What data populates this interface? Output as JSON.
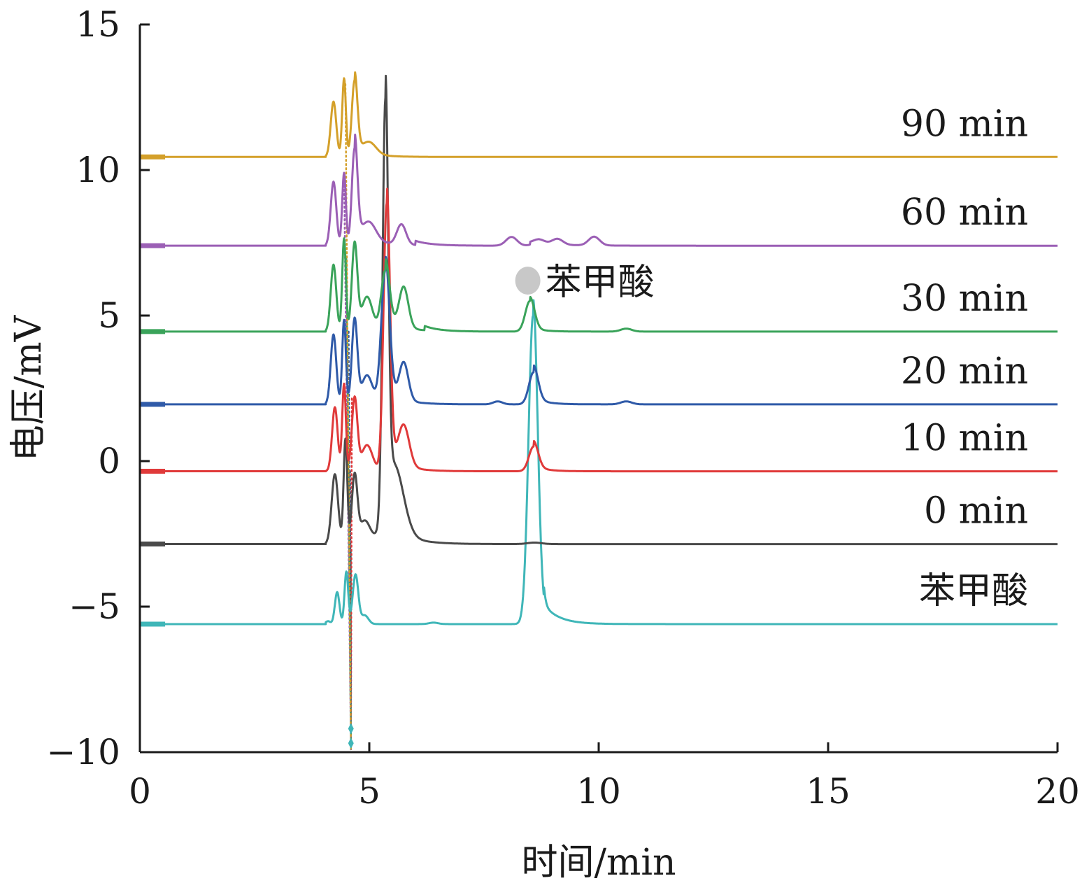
{
  "chart_data": {
    "type": "line",
    "xlabel": "时间/min",
    "ylabel": "电压/mV",
    "xlim": [
      0,
      20
    ],
    "ylim": [
      -10,
      15
    ],
    "xticks": [
      0,
      5,
      10,
      15,
      20
    ],
    "yticks": [
      -10,
      -5,
      0,
      5,
      10,
      15
    ],
    "ytick_labels": [
      "−10",
      "−5",
      "0",
      "5",
      "10",
      "15"
    ],
    "grid": false,
    "legend": "inline labels at right end of each trace",
    "series": [
      {
        "name": "苯甲酸",
        "color": "#3fb6b8",
        "baseline": -5.6,
        "peaks": [
          [
            4.1,
            0.1,
            0.05
          ],
          [
            4.3,
            1.1,
            0.05
          ],
          [
            4.5,
            1.8,
            0.04
          ],
          [
            4.7,
            1.7,
            0.06
          ],
          [
            4.9,
            0.3,
            0.08
          ],
          [
            6.4,
            0.05,
            0.1
          ],
          [
            8.57,
            10.6,
            0.1
          ]
        ],
        "tail": [
          [
            8.57,
            0.6,
            0.3
          ],
          [
            8.8,
            0.4,
            0.35
          ]
        ],
        "marker": 4.6
      },
      {
        "name": "0 min",
        "color": "#4a4a4a",
        "baseline": -2.85,
        "peaks": [
          [
            4.25,
            2.4,
            0.07
          ],
          [
            4.48,
            3.6,
            0.04
          ],
          [
            4.68,
            2.3,
            0.06
          ],
          [
            4.9,
            0.8,
            0.12
          ],
          [
            5.35,
            14.0,
            0.06
          ],
          [
            5.55,
            2.2,
            0.2
          ],
          [
            8.6,
            0.05,
            0.15
          ]
        ],
        "tail": [
          [
            5.35,
            0.9,
            0.4
          ]
        ],
        "marker": 4.58
      },
      {
        "name": "10 min",
        "color": "#e03a3a",
        "baseline": -0.35,
        "peaks": [
          [
            4.25,
            2.2,
            0.06
          ],
          [
            4.45,
            3.0,
            0.04
          ],
          [
            4.68,
            2.5,
            0.06
          ],
          [
            4.95,
            0.9,
            0.12
          ],
          [
            5.38,
            9.2,
            0.07
          ],
          [
            5.75,
            1.4,
            0.12
          ],
          [
            8.58,
            0.85,
            0.1
          ]
        ],
        "tail": [
          [
            5.38,
            0.6,
            0.35
          ],
          [
            8.58,
            0.2,
            0.25
          ]
        ],
        "marker": 4.62
      },
      {
        "name": "20 min",
        "color": "#2f5aa8",
        "baseline": 1.95,
        "peaks": [
          [
            4.22,
            2.4,
            0.06
          ],
          [
            4.45,
            2.9,
            0.04
          ],
          [
            4.68,
            2.9,
            0.06
          ],
          [
            4.95,
            1.0,
            0.12
          ],
          [
            5.35,
            4.6,
            0.09
          ],
          [
            5.75,
            1.3,
            0.1
          ],
          [
            7.8,
            0.1,
            0.1
          ],
          [
            8.58,
            1.1,
            0.1
          ],
          [
            10.6,
            0.1,
            0.12
          ]
        ],
        "tail": [
          [
            5.35,
            0.5,
            0.35
          ],
          [
            8.58,
            0.25,
            0.25
          ]
        ],
        "marker": 4.55
      },
      {
        "name": "30 min",
        "color": "#3aa35a",
        "baseline": 4.45,
        "peaks": [
          [
            4.22,
            2.3,
            0.06
          ],
          [
            4.45,
            3.2,
            0.04
          ],
          [
            4.68,
            3.0,
            0.06
          ],
          [
            4.95,
            1.2,
            0.12
          ],
          [
            5.35,
            2.1,
            0.09
          ],
          [
            5.75,
            1.4,
            0.1
          ],
          [
            8.5,
            1.05,
            0.1
          ],
          [
            10.6,
            0.1,
            0.12
          ]
        ],
        "tail": [
          [
            5.35,
            0.4,
            0.4
          ],
          [
            6.2,
            0.15,
            0.3
          ],
          [
            8.5,
            0.15,
            0.25
          ]
        ],
        "marker": 4.5
      },
      {
        "name": "60 min",
        "color": "#9b5fb5",
        "baseline": 7.4,
        "peaks": [
          [
            4.22,
            2.2,
            0.06
          ],
          [
            4.45,
            2.5,
            0.04
          ],
          [
            4.68,
            3.3,
            0.06
          ],
          [
            5.0,
            0.6,
            0.15
          ],
          [
            5.7,
            0.7,
            0.1
          ],
          [
            8.1,
            0.3,
            0.12
          ],
          [
            8.7,
            0.15,
            0.12
          ],
          [
            9.1,
            0.2,
            0.12
          ],
          [
            9.9,
            0.3,
            0.12
          ]
        ],
        "tail": [
          [
            4.68,
            0.5,
            0.4
          ],
          [
            6.0,
            0.15,
            0.35
          ],
          [
            8.5,
            0.1,
            0.6
          ]
        ],
        "marker": 4.45
      },
      {
        "name": "90 min",
        "color": "#d4a02a",
        "baseline": 10.45,
        "peaks": [
          [
            4.22,
            1.9,
            0.06
          ],
          [
            4.45,
            2.7,
            0.04
          ],
          [
            4.68,
            2.6,
            0.06
          ],
          [
            5.0,
            0.4,
            0.15
          ]
        ],
        "tail": [
          [
            4.68,
            0.3,
            0.35
          ]
        ],
        "marker": 4.48
      }
    ],
    "annotations": [
      {
        "text": "苯甲酸",
        "x": 8.5,
        "y": 6.2,
        "marker": "circle",
        "marker_color": "#c8c8c8"
      }
    ]
  }
}
